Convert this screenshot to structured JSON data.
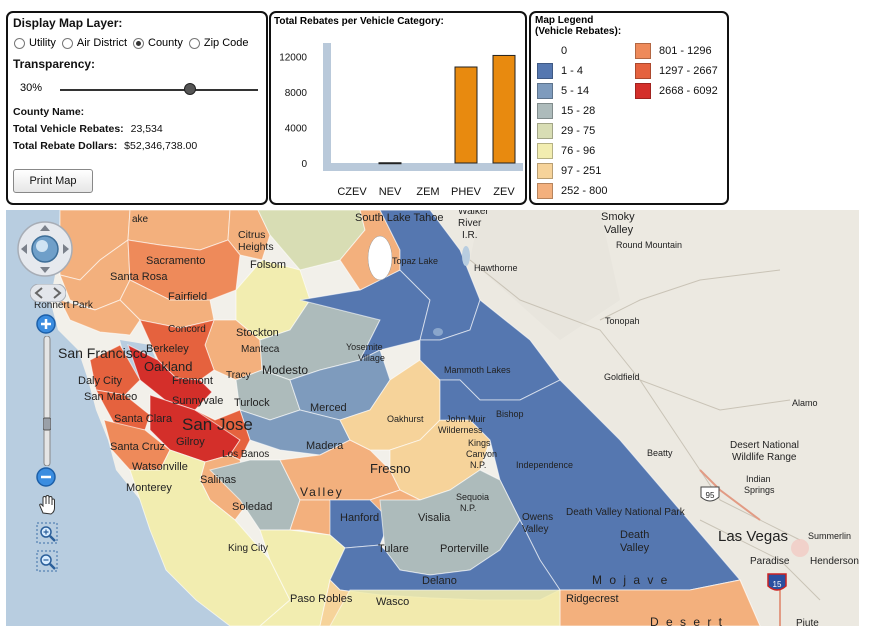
{
  "layer_panel": {
    "title": "Display Map Layer:",
    "options": [
      {
        "label": "Utility",
        "selected": false
      },
      {
        "label": "Air District",
        "selected": false
      },
      {
        "label": "County",
        "selected": true
      },
      {
        "label": "Zip Code",
        "selected": false
      }
    ],
    "transparency_label": "Transparency:",
    "transparency_value": "30%",
    "county_name_label": "County Name:",
    "county_name_value": "",
    "vehicle_rebates_label": "Total Vehicle Rebates:",
    "vehicle_rebates_value": "23,534",
    "rebate_dollars_label": "Total Rebate Dollars:",
    "rebate_dollars_value": "$52,346,738.00",
    "print_button": "Print Map"
  },
  "chart_data": {
    "type": "bar",
    "title": "Total Rebates per Vehicle Category:",
    "categories": [
      "CZEV",
      "NEV",
      "ZEM",
      "PHEV",
      "ZEV"
    ],
    "values": [
      0,
      30,
      0,
      10800,
      12100
    ],
    "yticks": [
      0,
      4000,
      8000,
      12000
    ],
    "ylim": [
      0,
      13500
    ],
    "bar_color": "#e88a0f"
  },
  "legend": {
    "title_line1": "Map Legend",
    "title_line2": "(Vehicle Rebates):",
    "items": [
      {
        "label": "0",
        "color": "#ffffff"
      },
      {
        "label": "1 - 4",
        "color": "#5577b0"
      },
      {
        "label": "5 - 14",
        "color": "#7e9bbd"
      },
      {
        "label": "15 - 28",
        "color": "#adbbbb"
      },
      {
        "label": "29 - 75",
        "color": "#d8ddb4"
      },
      {
        "label": "76 - 96",
        "color": "#f2edb0"
      },
      {
        "label": "97 - 251",
        "color": "#f6d39a"
      },
      {
        "label": "252 - 800",
        "color": "#f3b07d"
      },
      {
        "label": "801 - 1296",
        "color": "#ee8a5a"
      },
      {
        "label": "1297 - 2667",
        "color": "#e5623e"
      },
      {
        "label": "2668 - 6092",
        "color": "#d42f2a"
      }
    ]
  },
  "map": {
    "places": {
      "south_lake_tahoe": "South Lake Tahoe",
      "walker_river": "Walker\nRiver\nI.R.",
      "smoky_valley": "Smoky\nValley",
      "round_mountain": "Round Mountain",
      "topaz_lake": "Topaz Lake",
      "hawthorne": "Hawthorne",
      "citrus_heights": "Citrus\nHeights",
      "sacramento": "Sacramento",
      "folsom": "Folsom",
      "santa_rosa": "Santa Rosa",
      "fairfield": "Fairfield",
      "concord": "Concord",
      "stockton": "Stockton",
      "manteca": "Manteca",
      "tonopah": "Tonopah",
      "san_francisco": "San Francisco",
      "berkeley": "Berkeley",
      "oakland": "Oakland",
      "fremont": "Fremont",
      "tracy": "Tracy",
      "modesto": "Modesto",
      "yosemite_village": "Yosemite\nVillage",
      "mammoth_lakes": "Mammoth Lakes",
      "goldfield": "Goldfield",
      "daly_city": "Daly City",
      "san_mateo": "San Mateo",
      "sunnyvale": "Sunnyvale",
      "santa_clara": "Santa Clara",
      "san_jose": "San Jose",
      "turlock": "Turlock",
      "merced": "Merced",
      "oakhurst": "Oakhurst",
      "bishop": "Bishop",
      "alamo": "Alamo",
      "santa_cruz": "Santa Cruz",
      "gilroy": "Gilroy",
      "los_banos": "Los Banos",
      "madera": "Madera",
      "john_muir_wilderness": "John Muir\nWilderness",
      "kings_canyon": "Kings\nCanyon\nN.P.",
      "desert_national_wildlife_range": "Desert National\nWildlife Range",
      "watsonville": "Watsonville",
      "independence": "Independence",
      "beatty": "Beatty",
      "monterey": "Monterey",
      "salinas": "Salinas",
      "fresno": "Fresno",
      "valley": "Valley",
      "indian_springs": "Indian\nSprings",
      "soledad": "Soledad",
      "sequoia": "Sequoia\nN.P.",
      "hanford": "Hanford",
      "visalia": "Visalia",
      "owens_valley": "Owens\nValley",
      "death_valley_np": "Death Valley National Park",
      "death_valley": "Death\nValley",
      "king_city": "King City",
      "tulare": "Tulare",
      "porterville": "Porterville",
      "las_vegas": "Las Vegas",
      "summerlin": "Summerlin",
      "paradise": "Paradise",
      "henderson": "Henderson",
      "delano": "Delano",
      "mojave": "M o j a v e",
      "paso_robles": "Paso Robles",
      "wasco": "Wasco",
      "ridgecrest": "Ridgecrest",
      "desert": "D e s e r t",
      "piute": "Piute",
      "lake_partial": "ake",
      "rohnert_park": "Rohnert Park"
    },
    "shields": {
      "us95": "95",
      "i15": "15"
    }
  }
}
